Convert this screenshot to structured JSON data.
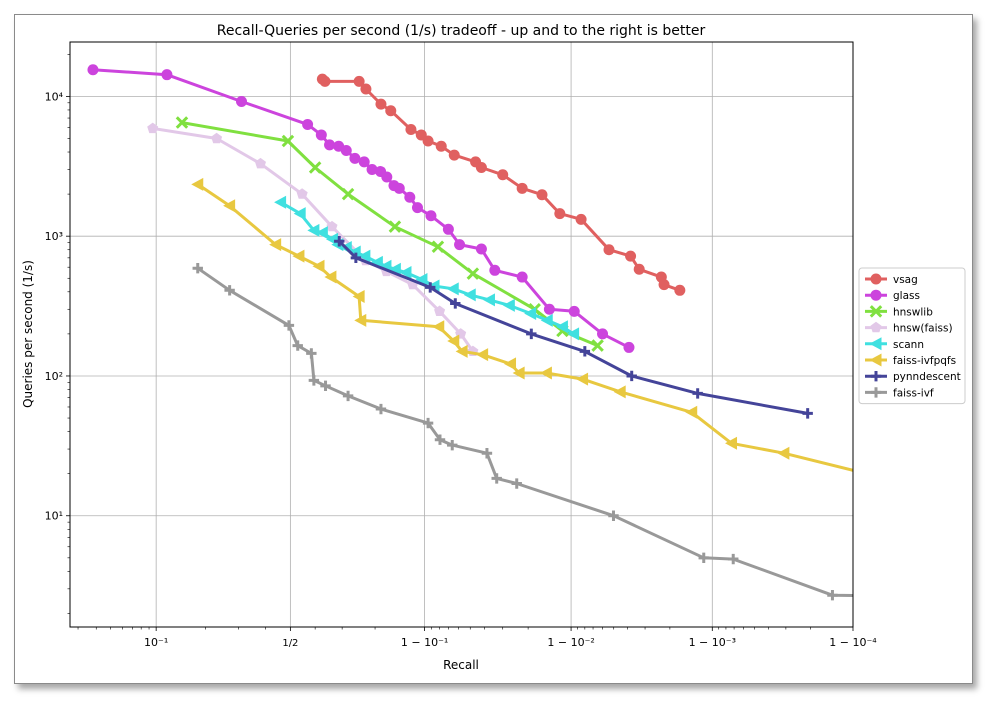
{
  "chart_data": {
    "type": "line",
    "title": "Recall-Queries per second (1/s) tradeoff - up and to the right is better",
    "xlabel": "Recall",
    "ylabel": "Queries per second (1/s)",
    "xscale": "logit-style (1 - recall), log",
    "yscale": "log",
    "x_ticks": [
      {
        "label": "10⁻¹",
        "value": 0.1
      },
      {
        "label": "1/2",
        "value": 0.5
      },
      {
        "label": "1 − 10⁻¹",
        "value": 0.9
      },
      {
        "label": "1 − 10⁻²",
        "value": 0.99
      },
      {
        "label": "1 − 10⁻³",
        "value": 0.999
      },
      {
        "label": "1 − 10⁻⁴",
        "value": 0.9999
      }
    ],
    "y_ticks": [
      {
        "label": "10¹",
        "value": 10
      },
      {
        "label": "10²",
        "value": 100
      },
      {
        "label": "10³",
        "value": 1000
      },
      {
        "label": "10⁴",
        "value": 10000
      }
    ],
    "grid": true,
    "legend_position": "right",
    "series": [
      {
        "name": "vsag",
        "color": "#e06060",
        "marker": "circle",
        "points": [
          [
            0.628,
            13300
          ],
          [
            0.638,
            12800
          ],
          [
            0.755,
            12800
          ],
          [
            0.775,
            11300
          ],
          [
            0.815,
            8800
          ],
          [
            0.838,
            7900
          ],
          [
            0.878,
            5800
          ],
          [
            0.895,
            5300
          ],
          [
            0.905,
            4800
          ],
          [
            0.922,
            4400
          ],
          [
            0.936,
            3800
          ],
          [
            0.954,
            3400
          ],
          [
            0.958,
            3100
          ],
          [
            0.97,
            2750
          ],
          [
            0.978,
            2200
          ],
          [
            0.984,
            1980
          ],
          [
            0.988,
            1450
          ],
          [
            0.9915,
            1320
          ],
          [
            0.9946,
            800
          ],
          [
            0.9962,
            720
          ],
          [
            0.9967,
            580
          ],
          [
            0.9977,
            510
          ],
          [
            0.9978,
            450
          ],
          [
            0.9983,
            410
          ]
        ]
      },
      {
        "name": "glass",
        "color": "#cc44dd",
        "marker": "circle",
        "points": [
          [
            0.038,
            15500
          ],
          [
            0.117,
            14300
          ],
          [
            0.31,
            9200
          ],
          [
            0.57,
            6300
          ],
          [
            0.624,
            5300
          ],
          [
            0.655,
            4500
          ],
          [
            0.688,
            4400
          ],
          [
            0.714,
            4100
          ],
          [
            0.742,
            3600
          ],
          [
            0.77,
            3400
          ],
          [
            0.792,
            3000
          ],
          [
            0.814,
            2900
          ],
          [
            0.829,
            2650
          ],
          [
            0.845,
            2300
          ],
          [
            0.856,
            2200
          ],
          [
            0.876,
            1900
          ],
          [
            0.889,
            1600
          ],
          [
            0.909,
            1400
          ],
          [
            0.93,
            1120
          ],
          [
            0.941,
            870
          ],
          [
            0.958,
            810
          ],
          [
            0.966,
            570
          ],
          [
            0.978,
            510
          ],
          [
            0.9858,
            300
          ],
          [
            0.9905,
            290
          ],
          [
            0.994,
            200
          ],
          [
            0.9961,
            160
          ]
        ]
      },
      {
        "name": "hnswlib",
        "color": "#80e040",
        "marker": "x",
        "points": [
          [
            0.145,
            6500
          ],
          [
            0.49,
            4800
          ],
          [
            0.6,
            3100
          ],
          [
            0.72,
            2000
          ],
          [
            0.847,
            1170
          ],
          [
            0.918,
            840
          ],
          [
            0.952,
            540
          ],
          [
            0.982,
            300
          ],
          [
            0.9885,
            210
          ],
          [
            0.9935,
            165
          ]
        ]
      },
      {
        "name": "hnsw(faiss)",
        "color": "#e2c8e8",
        "marker": "pentagon",
        "points": [
          [
            0.095,
            5900
          ],
          [
            0.23,
            5000
          ],
          [
            0.38,
            3300
          ],
          [
            0.548,
            2000
          ],
          [
            0.664,
            1170
          ],
          [
            0.774,
            670
          ],
          [
            0.828,
            560
          ],
          [
            0.881,
            450
          ],
          [
            0.92,
            290
          ],
          [
            0.942,
            200
          ],
          [
            0.952,
            150
          ]
        ]
      },
      {
        "name": "scann",
        "color": "#40e0e0",
        "marker": "triangle-left",
        "points": [
          [
            0.46,
            1750
          ],
          [
            0.54,
            1450
          ],
          [
            0.595,
            1100
          ],
          [
            0.628,
            1060
          ],
          [
            0.666,
            950
          ],
          [
            0.685,
            870
          ],
          [
            0.714,
            830
          ],
          [
            0.743,
            770
          ],
          [
            0.772,
            720
          ],
          [
            0.806,
            650
          ],
          [
            0.827,
            610
          ],
          [
            0.848,
            580
          ],
          [
            0.869,
            550
          ],
          [
            0.896,
            490
          ],
          [
            0.913,
            440
          ],
          [
            0.935,
            420
          ],
          [
            0.95,
            380
          ],
          [
            0.963,
            350
          ],
          [
            0.973,
            320
          ],
          [
            0.9808,
            280
          ],
          [
            0.9853,
            250
          ],
          [
            0.9885,
            225
          ],
          [
            0.9904,
            200
          ]
        ]
      },
      {
        "name": "faiss-ivfpqfs",
        "color": "#e8c840",
        "marker": "triangle-left",
        "points": [
          [
            0.18,
            2350
          ],
          [
            0.27,
            1650
          ],
          [
            0.44,
            870
          ],
          [
            0.535,
            720
          ],
          [
            0.615,
            610
          ],
          [
            0.66,
            510
          ],
          [
            0.755,
            370
          ],
          [
            0.76,
            250
          ],
          [
            0.919,
            225
          ],
          [
            0.9355,
            178
          ],
          [
            0.9433,
            150
          ],
          [
            0.9588,
            142
          ],
          [
            0.9735,
            122
          ],
          [
            0.9769,
            105
          ],
          [
            0.9851,
            105
          ],
          [
            0.9917,
            95
          ],
          [
            0.9955,
            77
          ],
          [
            0.9986,
            55
          ],
          [
            0.99927,
            33
          ],
          [
            0.99969,
            28
          ],
          [
            0.99992,
            20
          ]
        ]
      },
      {
        "name": "pynndescent",
        "color": "#444499",
        "marker": "plus",
        "points": [
          [
            0.69,
            920
          ],
          [
            0.745,
            700
          ],
          [
            0.908,
            430
          ],
          [
            0.937,
            330
          ],
          [
            0.981,
            200
          ],
          [
            0.992,
            150
          ],
          [
            0.99627,
            100
          ],
          [
            0.99873,
            75
          ],
          [
            0.99979,
            54
          ]
        ]
      },
      {
        "name": "faiss-ivf",
        "color": "#999999",
        "marker": "plus",
        "points": [
          [
            0.18,
            590
          ],
          [
            0.27,
            410
          ],
          [
            0.494,
            230
          ],
          [
            0.53,
            165
          ],
          [
            0.585,
            145
          ],
          [
            0.595,
            93
          ],
          [
            0.64,
            85
          ],
          [
            0.72,
            72
          ],
          [
            0.815,
            58
          ],
          [
            0.905,
            46
          ],
          [
            0.9205,
            35
          ],
          [
            0.934,
            32
          ],
          [
            0.9615,
            28
          ],
          [
            0.967,
            18.5
          ],
          [
            0.976,
            17
          ],
          [
            0.99498,
            10
          ],
          [
            0.99885,
            5
          ],
          [
            0.99929,
            4.9
          ],
          [
            0.99986,
            2.7
          ],
          [
            0.99999,
            2.6
          ]
        ]
      }
    ]
  }
}
